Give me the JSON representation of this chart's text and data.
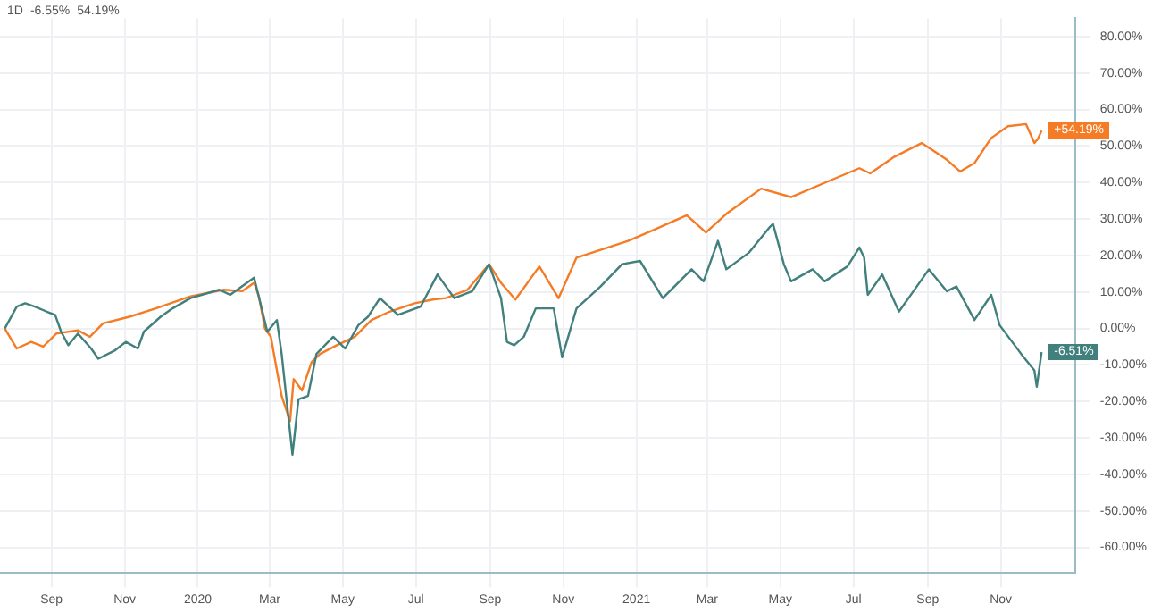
{
  "chart_data": {
    "type": "line",
    "annotations": [
      "1D",
      "-6.55%",
      "54.19%",
      {
        "text": "+54.19%",
        "x": "2021-12-05",
        "y": 54.2
      },
      {
        "text": "-6.51%",
        "x": "2021-12-05",
        "y": -6.5
      }
    ],
    "series": [
      {
        "color": "#41807c",
        "x": [
          "2019-07-24",
          "2019-08-03",
          "2019-08-10",
          "2019-08-18",
          "2019-08-28",
          "2019-09-04",
          "2019-09-09",
          "2019-09-15",
          "2019-09-23",
          "2019-10-04",
          "2019-10-10",
          "2019-10-24",
          "2019-11-02",
          "2019-11-12",
          "2019-11-17",
          "2019-12-01",
          "2019-12-11",
          "2019-12-26",
          "2020-01-19",
          "2020-01-28",
          "2020-02-17",
          "2020-02-24",
          "2020-02-28",
          "2020-03-07",
          "2020-03-11",
          "2020-03-17",
          "2020-03-20",
          "2020-03-25",
          "2020-04-02",
          "2020-04-09",
          "2020-04-23",
          "2020-05-03",
          "2020-05-14",
          "2020-05-22",
          "2020-06-01",
          "2020-06-16",
          "2020-07-05",
          "2020-07-19",
          "2020-08-02",
          "2020-08-17",
          "2020-08-31",
          "2020-09-10",
          "2020-09-15",
          "2020-09-21",
          "2020-09-29",
          "2020-10-09",
          "2020-10-24",
          "2020-10-31",
          "2020-11-12",
          "2020-12-02",
          "2020-12-20",
          "2021-01-04",
          "2021-01-23",
          "2021-02-16",
          "2021-02-26",
          "2021-03-10",
          "2021-03-17",
          "2021-04-05",
          "2021-04-22",
          "2021-04-25",
          "2021-05-04",
          "2021-05-10",
          "2021-05-28",
          "2021-06-07",
          "2021-06-26",
          "2021-07-06",
          "2021-07-10",
          "2021-07-13",
          "2021-07-25",
          "2021-08-08",
          "2021-09-02",
          "2021-09-17",
          "2021-09-25",
          "2021-10-10",
          "2021-10-24",
          "2021-10-31",
          "2021-11-18",
          "2021-11-29",
          "2021-12-01",
          "2021-12-05"
        ],
        "values": [
          0,
          6,
          6.9,
          6,
          4.6,
          3.7,
          -0.9,
          -4.6,
          -1.4,
          -5.5,
          -8.3,
          -6,
          -3.7,
          -5.5,
          -0.9,
          3.2,
          5.5,
          8.3,
          10.6,
          9.2,
          13.9,
          4.6,
          -0.9,
          2.3,
          -7,
          -25.4,
          -34.6,
          -19.4,
          -18.5,
          -7,
          -2.3,
          -5.5,
          0.9,
          3.2,
          8.3,
          3.7,
          6,
          14.8,
          8.3,
          10.2,
          17.6,
          8.3,
          -3.7,
          -4.6,
          -2.3,
          5.5,
          5.5,
          -7.9,
          5.5,
          11.5,
          17.6,
          18.5,
          8.3,
          16.2,
          12.9,
          24,
          16.2,
          20.8,
          27.7,
          28.6,
          17.6,
          12.9,
          16.2,
          12.9,
          17,
          22.2,
          19.4,
          9.2,
          14.8,
          4.6,
          16.2,
          10.2,
          11.5,
          2.3,
          9.2,
          0.9,
          -7,
          -11.5,
          -16,
          -6.5
        ]
      },
      {
        "color": "#f57c25",
        "x": [
          "2019-07-24",
          "2019-08-03",
          "2019-08-15",
          "2019-08-25",
          "2019-09-05",
          "2019-09-23",
          "2019-10-03",
          "2019-10-14",
          "2019-11-05",
          "2019-11-27",
          "2019-12-26",
          "2020-01-23",
          "2020-02-07",
          "2020-02-17",
          "2020-02-21",
          "2020-02-26",
          "2020-03-02",
          "2020-03-07",
          "2020-03-11",
          "2020-03-18",
          "2020-03-21",
          "2020-03-28",
          "2020-04-05",
          "2020-04-12",
          "2020-04-26",
          "2020-05-11",
          "2020-05-25",
          "2020-06-09",
          "2020-06-30",
          "2020-07-15",
          "2020-07-26",
          "2020-08-13",
          "2020-08-31",
          "2020-09-10",
          "2020-09-22",
          "2020-10-12",
          "2020-10-28",
          "2020-11-12",
          "2020-12-25",
          "2021-01-14",
          "2021-02-12",
          "2021-02-28",
          "2021-03-17",
          "2021-04-15",
          "2021-05-10",
          "2021-06-12",
          "2021-07-06",
          "2021-07-15",
          "2021-08-04",
          "2021-08-27",
          "2021-09-17",
          "2021-09-28",
          "2021-10-10",
          "2021-10-24",
          "2021-11-07",
          "2021-11-22",
          "2021-11-29",
          "2021-12-02",
          "2021-12-05"
        ],
        "values": [
          0,
          -5.5,
          -3.7,
          -5,
          -1.4,
          -0.5,
          -2.3,
          1.4,
          3.2,
          5.5,
          8.8,
          10.6,
          10.2,
          12.5,
          8.8,
          0,
          -2.3,
          -11.5,
          -18.5,
          -25.4,
          -13.9,
          -17,
          -9.2,
          -7,
          -4.6,
          -2.3,
          2.3,
          4.6,
          6.9,
          7.9,
          8.3,
          10.6,
          17.6,
          12.5,
          7.9,
          17,
          8.3,
          19.4,
          24,
          26.8,
          31,
          26.3,
          31.4,
          38.3,
          36,
          40.6,
          43.9,
          42.5,
          47,
          50.8,
          46.2,
          43,
          45.3,
          52.2,
          55.4,
          56,
          50.8,
          52,
          54.2
        ]
      }
    ],
    "xlim": [
      "2019-07-20",
      "2022-01-02"
    ],
    "xticks": [
      {
        "value": "2019-09-01",
        "label": "Sep"
      },
      {
        "value": "2019-11-01",
        "label": "Nov"
      },
      {
        "value": "2020-01-01",
        "label": "2020"
      },
      {
        "value": "2020-03-01",
        "label": "Mar"
      },
      {
        "value": "2020-05-01",
        "label": "May"
      },
      {
        "value": "2020-07-01",
        "label": "Jul"
      },
      {
        "value": "2020-09-01",
        "label": "Sep"
      },
      {
        "value": "2020-11-01",
        "label": "Nov"
      },
      {
        "value": "2021-01-01",
        "label": "2021"
      },
      {
        "value": "2021-03-01",
        "label": "Mar"
      },
      {
        "value": "2021-05-01",
        "label": "May"
      },
      {
        "value": "2021-07-01",
        "label": "Jul"
      },
      {
        "value": "2021-09-01",
        "label": "Sep"
      },
      {
        "value": "2021-11-01",
        "label": "Nov"
      }
    ],
    "ylim": [
      -67,
      85
    ],
    "yticks": [
      {
        "value": -60,
        "label": "-60.00%"
      },
      {
        "value": -50,
        "label": "-50.00%"
      },
      {
        "value": -40,
        "label": "-40.00%"
      },
      {
        "value": -30,
        "label": "-30.00%"
      },
      {
        "value": -20,
        "label": "-20.00%"
      },
      {
        "value": -10,
        "label": "-10.00%"
      },
      {
        "value": 0,
        "label": "0.00%"
      },
      {
        "value": 10,
        "label": "10.00%"
      },
      {
        "value": 20,
        "label": "20.00%"
      },
      {
        "value": 30,
        "label": "30.00%"
      },
      {
        "value": 40,
        "label": "40.00%"
      },
      {
        "value": 50,
        "label": "50.00%"
      },
      {
        "value": 60,
        "label": "60.00%"
      },
      {
        "value": 70,
        "label": "70.00%"
      },
      {
        "value": 80,
        "label": "80.00%"
      }
    ],
    "grid": true,
    "marker": "none",
    "line_style": "solid"
  }
}
